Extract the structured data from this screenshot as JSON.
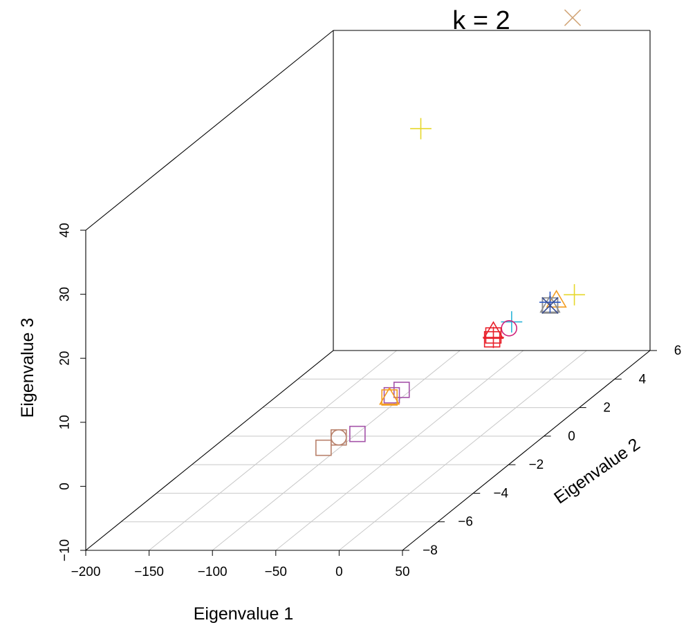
{
  "chart_data": {
    "type": "scatter",
    "projection": "3d",
    "title": "k = 2",
    "xlabel": "Eigenvalue 1",
    "ylabel": "Eigenvalue 2",
    "zlabel": "Eigenvalue 3",
    "xlim": [
      -200,
      50
    ],
    "ylim": [
      -8,
      6
    ],
    "zlim": [
      -10,
      40
    ],
    "x_ticks": [
      "−200",
      "−150",
      "−100",
      "−50",
      "0",
      "50"
    ],
    "y_ticks": [
      "−8",
      "−6",
      "−4",
      "−2",
      "0",
      "2",
      "4",
      "6"
    ],
    "z_ticks": [
      "−10",
      "0",
      "10",
      "20",
      "30",
      "40"
    ],
    "grid": true,
    "legend": "none",
    "colors": {
      "yellow": "#e6d72a",
      "tan": "#d2a679",
      "orange": "#f39c1f",
      "red": "#e8202a",
      "magenta": "#d0217a",
      "cyan": "#2ab3d8",
      "navy": "#35498c",
      "gray": "#8c8c8c",
      "purple": "#a452a8",
      "brown": "#b8806a",
      "blue": "#2b57c4"
    },
    "points": [
      {
        "x": -110,
        "y": 4.5,
        "z": 28,
        "shape": "plus",
        "color": "yellow"
      },
      {
        "x": 14,
        "y": 4.2,
        "z": 46,
        "shape": "x",
        "color": "tan"
      },
      {
        "x": 14,
        "y": 4.3,
        "z": 2.5,
        "shape": "plus",
        "color": "yellow"
      },
      {
        "x": 4,
        "y": 4.0,
        "z": 2.3,
        "shape": "triangle",
        "color": "orange"
      },
      {
        "x": -1,
        "y": 4.0,
        "z": 1.5,
        "shape": "square",
        "color": "navy"
      },
      {
        "x": -1,
        "y": 4.0,
        "z": 1.5,
        "shape": "square",
        "color": "gray"
      },
      {
        "x": -1,
        "y": 4.0,
        "z": 1.5,
        "shape": "triangle",
        "color": "gray"
      },
      {
        "x": -1,
        "y": 4.0,
        "z": 2.0,
        "shape": "plus",
        "color": "blue"
      },
      {
        "x": -1,
        "y": 4.0,
        "z": 1.5,
        "shape": "x",
        "color": "navy"
      },
      {
        "x": -9,
        "y": 2.4,
        "z": 2.5,
        "shape": "plus",
        "color": "cyan"
      },
      {
        "x": -11,
        "y": 2.4,
        "z": 1.5,
        "shape": "circle",
        "color": "magenta"
      },
      {
        "x": -22,
        "y": 2.3,
        "z": 0.6,
        "shape": "square",
        "color": "red"
      },
      {
        "x": -22,
        "y": 2.3,
        "z": 0.3,
        "shape": "plus",
        "color": "red"
      },
      {
        "x": -22,
        "y": 2.3,
        "z": 1.2,
        "shape": "triangle",
        "color": "red"
      },
      {
        "x": -23,
        "y": 2.3,
        "z": 0.0,
        "shape": "square",
        "color": "red"
      },
      {
        "x": -40,
        "y": -1.6,
        "z": 0.8,
        "shape": "square",
        "color": "purple"
      },
      {
        "x": -45,
        "y": -1.8,
        "z": 0.4,
        "shape": "square",
        "color": "purple"
      },
      {
        "x": -44,
        "y": -2.0,
        "z": 0.5,
        "shape": "triangle",
        "color": "orange"
      },
      {
        "x": -44,
        "y": -2.0,
        "z": 0.5,
        "shape": "square",
        "color": "orange"
      },
      {
        "x": -33,
        "y": -4.6,
        "z": 0.6,
        "shape": "square",
        "color": "purple"
      },
      {
        "x": -45,
        "y": -4.8,
        "z": 0.5,
        "shape": "square",
        "color": "brown"
      },
      {
        "x": -45,
        "y": -4.8,
        "z": 0.5,
        "shape": "circle",
        "color": "brown"
      },
      {
        "x": -50,
        "y": -5.3,
        "z": 0.0,
        "shape": "square",
        "color": "brown"
      }
    ]
  }
}
